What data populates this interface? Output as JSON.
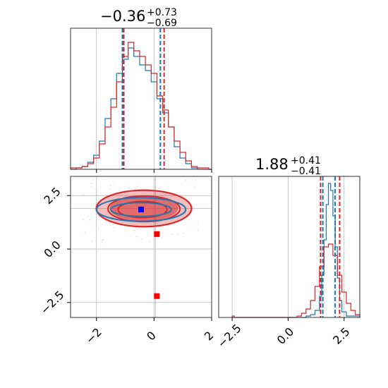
{
  "colors": {
    "sample_a": "#1f77b4",
    "sample_b": "#d62728",
    "marker_blue": "#0000ff",
    "marker_red": "#ff0000",
    "grid": "#b0b0b0",
    "frame": "#333333"
  },
  "chart_data": [
    {
      "type": "histogram-step",
      "panel": "marginal-x",
      "title_main": "−0.36",
      "title_sup": "+0.73",
      "title_sub": "−0.69",
      "xlim": [
        -2.9,
        2.0
      ],
      "ylim": [
        0,
        1
      ],
      "grid": true,
      "quantile_lines": [
        {
          "color": "sample_a",
          "values": [
            -1.1,
            0.22
          ]
        },
        {
          "color": "sample_b",
          "values": [
            -1.05,
            0.35
          ]
        }
      ],
      "series": [
        {
          "color": "sample_a",
          "x": [
            -2.9,
            -2.7,
            -2.5,
            -2.3,
            -2.1,
            -1.9,
            -1.7,
            -1.5,
            -1.3,
            -1.1,
            -0.9,
            -0.7,
            -0.5,
            -0.3,
            -0.1,
            0.1,
            0.3,
            0.5,
            0.7,
            0.9,
            1.1,
            1.3,
            1.5,
            1.7,
            1.9
          ],
          "values": [
            0.0,
            0.01,
            0.02,
            0.05,
            0.1,
            0.2,
            0.36,
            0.5,
            0.68,
            0.78,
            0.86,
            0.8,
            0.74,
            0.7,
            0.62,
            0.5,
            0.4,
            0.3,
            0.16,
            0.08,
            0.04,
            0.01,
            0.0,
            0.0,
            0.0
          ]
        },
        {
          "color": "sample_b",
          "x": [
            -2.9,
            -2.7,
            -2.5,
            -2.3,
            -2.1,
            -1.9,
            -1.7,
            -1.5,
            -1.3,
            -1.1,
            -0.9,
            -0.7,
            -0.5,
            -0.3,
            -0.1,
            0.1,
            0.3,
            0.5,
            0.7,
            0.9,
            1.1,
            1.3,
            1.5,
            1.7,
            1.9
          ],
          "values": [
            0.01,
            0.01,
            0.02,
            0.04,
            0.08,
            0.18,
            0.3,
            0.44,
            0.62,
            0.8,
            0.9,
            0.84,
            0.8,
            0.74,
            0.68,
            0.52,
            0.42,
            0.3,
            0.2,
            0.12,
            0.06,
            0.02,
            0.01,
            0.01,
            0.0
          ]
        }
      ]
    },
    {
      "type": "contour",
      "panel": "joint",
      "xlim": [
        -2.9,
        2.0
      ],
      "ylim": [
        -3.2,
        3.4
      ],
      "grid": true,
      "x_ticks": [
        "−2",
        "0",
        "2"
      ],
      "x_tick_values": [
        -2,
        0,
        2
      ],
      "y_ticks": [
        "2.5",
        "0.0",
        "−2.5"
      ],
      "y_tick_values": [
        2.5,
        0.0,
        -2.5
      ],
      "filled_region": {
        "color": "sample_b",
        "center": [
          -0.35,
          1.9
        ],
        "half_widths": [
          1.7,
          0.9
        ]
      },
      "contours": [
        {
          "color": "sample_b",
          "center": [
            -0.35,
            1.9
          ],
          "half_widths": [
            1.65,
            0.85
          ]
        },
        {
          "color": "sample_b",
          "center": [
            -0.35,
            1.88
          ],
          "half_widths": [
            1.25,
            0.6
          ]
        },
        {
          "color": "sample_b",
          "center": [
            -0.4,
            1.85
          ],
          "half_widths": [
            0.85,
            0.38
          ]
        },
        {
          "color": "sample_a",
          "center": [
            -0.45,
            1.85
          ],
          "half_widths": [
            1.55,
            0.55
          ]
        },
        {
          "color": "sample_a",
          "center": [
            -0.45,
            1.85
          ],
          "half_widths": [
            1.05,
            0.32
          ]
        }
      ],
      "markers": [
        {
          "color": "marker_blue",
          "x": -0.45,
          "y": 1.85
        },
        {
          "color": "marker_red",
          "x": 0.1,
          "y": 0.7
        },
        {
          "color": "marker_red",
          "x": 0.1,
          "y": -2.2
        }
      ],
      "reference_lines": {
        "x": 0.05,
        "y": 1.9
      }
    },
    {
      "type": "histogram-step",
      "panel": "marginal-y",
      "title_main": "1.88",
      "title_sup": "+0.41",
      "title_sub": "−0.41",
      "xlim": [
        -3.1,
        3.2
      ],
      "ylim": [
        0,
        1
      ],
      "grid": true,
      "x_ticks": [
        "−2.5",
        "0.0",
        "2.5"
      ],
      "x_tick_values": [
        -2.5,
        0.0,
        2.5
      ],
      "quantile_lines": [
        {
          "color": "sample_a",
          "values": [
            1.55,
            2.1
          ]
        },
        {
          "color": "sample_b",
          "values": [
            1.45,
            2.3
          ]
        }
      ],
      "series": [
        {
          "color": "sample_a",
          "x": [
            -2.5,
            0.8,
            1.0,
            1.2,
            1.4,
            1.5,
            1.6,
            1.7,
            1.8,
            1.9,
            2.0,
            2.1,
            2.2,
            2.3,
            2.4,
            2.6,
            3.2
          ],
          "values": [
            0.0,
            0.01,
            0.02,
            0.05,
            0.15,
            0.3,
            0.55,
            0.8,
            0.95,
            0.9,
            0.72,
            0.5,
            0.28,
            0.12,
            0.04,
            0.01,
            0.0
          ]
        },
        {
          "color": "sample_b",
          "x": [
            -2.5,
            -2.4,
            0.4,
            0.6,
            0.8,
            1.0,
            1.2,
            1.4,
            1.6,
            1.8,
            2.0,
            2.2,
            2.4,
            2.6,
            2.8,
            3.0,
            3.2
          ],
          "values": [
            0.01,
            0.0,
            0.01,
            0.03,
            0.06,
            0.12,
            0.22,
            0.36,
            0.5,
            0.52,
            0.44,
            0.3,
            0.18,
            0.1,
            0.05,
            0.02,
            0.01
          ]
        }
      ]
    }
  ]
}
